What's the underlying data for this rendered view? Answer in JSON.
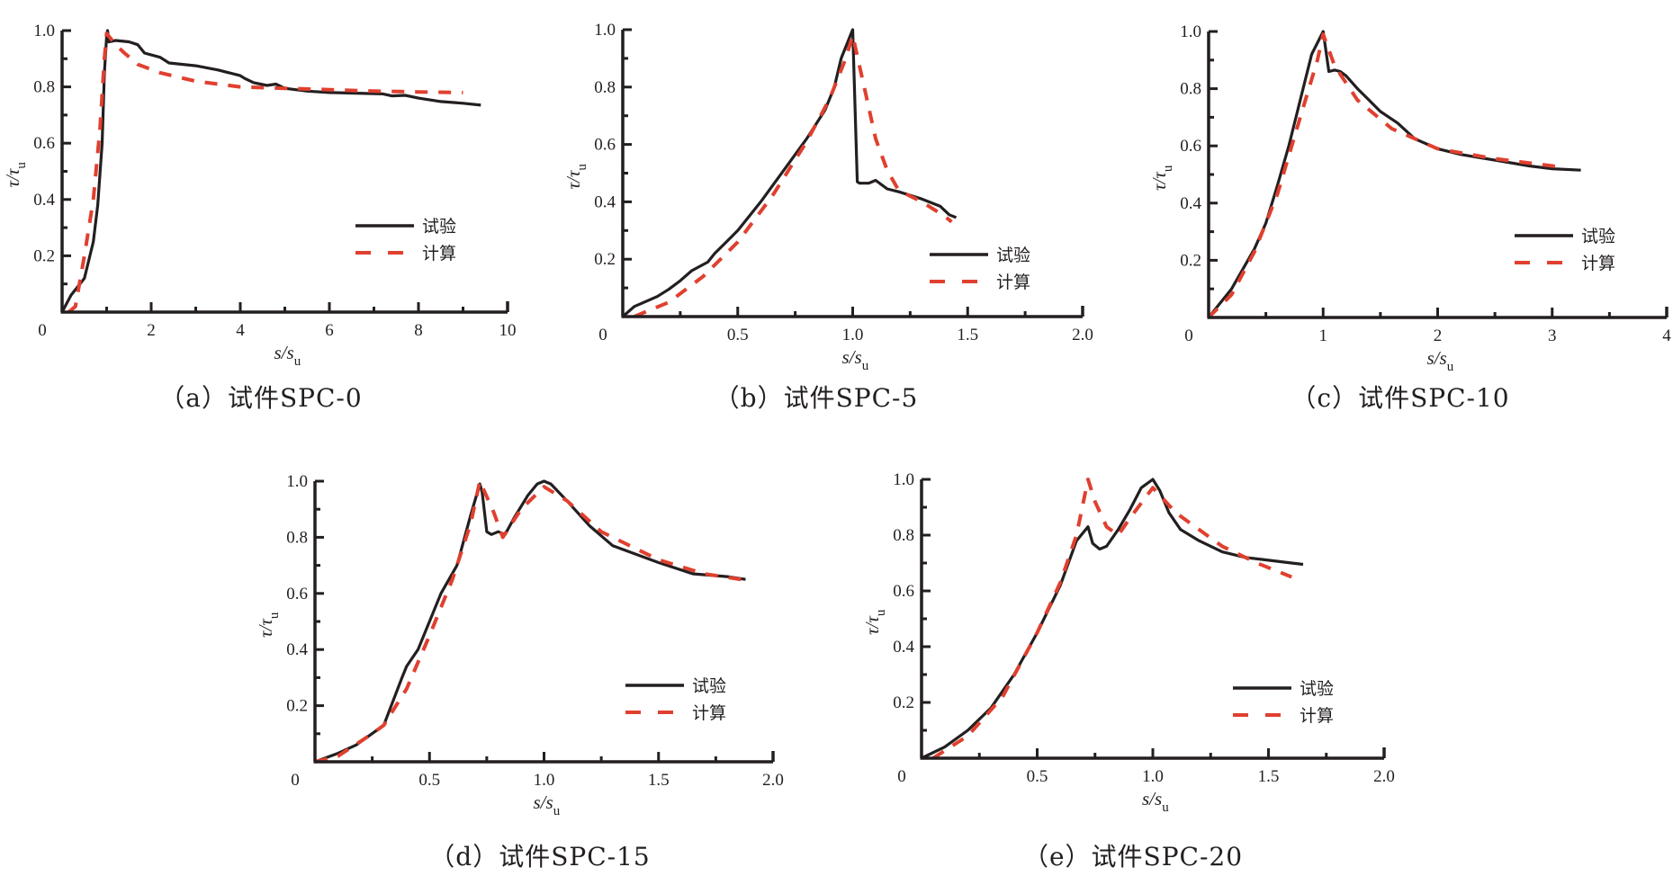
{
  "colors": {
    "test": "#231f20",
    "calc": "#e0402f",
    "axis": "#231f20"
  },
  "legend": {
    "test_label": "试验",
    "calc_label": "计算"
  },
  "chart_data": [
    {
      "id": "a",
      "type": "line",
      "caption": "（a）试件SPC-0",
      "xlabel": "s/s",
      "xlabel_sub": "u",
      "ylabel": "τ/τ",
      "ylabel_sub": "u",
      "xlim": [
        0,
        10
      ],
      "ylim": [
        0,
        1.0
      ],
      "xticks": [
        0,
        2,
        4,
        6,
        8,
        10
      ],
      "xtick_labels": [
        "0",
        "2",
        "4",
        "6",
        "8",
        "10"
      ],
      "xminor": [
        1,
        3,
        5,
        7,
        9
      ],
      "yticks": [
        0.2,
        0.4,
        0.6,
        0.8,
        1.0
      ],
      "ytick_labels": [
        "0.2",
        "0.4",
        "0.6",
        "0.8",
        "1.0"
      ],
      "yminor": [
        0.1,
        0.3,
        0.5,
        0.7,
        0.9
      ],
      "legend_position": "center-right",
      "series": [
        {
          "name": "试验",
          "style": "solid",
          "x": [
            0,
            0.2,
            0.5,
            0.7,
            0.8,
            0.9,
            0.95,
            1.0,
            1.02,
            1.05,
            1.2,
            1.5,
            1.7,
            1.85,
            2.2,
            2.4,
            3.0,
            3.5,
            4.0,
            4.1,
            4.3,
            4.6,
            4.8,
            5.0,
            5.5,
            6.0,
            6.5,
            7.0,
            7.2,
            7.4,
            7.7,
            8.0,
            8.5,
            9.0,
            9.4
          ],
          "y": [
            0,
            0.06,
            0.12,
            0.25,
            0.38,
            0.6,
            0.85,
            0.98,
            1.0,
            0.96,
            0.965,
            0.96,
            0.95,
            0.92,
            0.905,
            0.885,
            0.875,
            0.86,
            0.84,
            0.83,
            0.815,
            0.805,
            0.81,
            0.795,
            0.785,
            0.78,
            0.778,
            0.776,
            0.775,
            0.768,
            0.77,
            0.76,
            0.748,
            0.742,
            0.735
          ]
        },
        {
          "name": "计算",
          "style": "dashed",
          "x": [
            0.15,
            0.3,
            0.5,
            0.7,
            0.85,
            0.95,
            1.0,
            1.2,
            1.4,
            1.7,
            2.2,
            3.0,
            4.0,
            5.0,
            6.0,
            7.0,
            8.0,
            9.0
          ],
          "y": [
            0,
            0.02,
            0.2,
            0.4,
            0.65,
            0.9,
            0.99,
            0.95,
            0.92,
            0.88,
            0.85,
            0.82,
            0.8,
            0.795,
            0.79,
            0.785,
            0.782,
            0.78
          ]
        }
      ]
    },
    {
      "id": "b",
      "type": "line",
      "caption": "（b）试件SPC-5",
      "xlabel": "s/s",
      "xlabel_sub": "u",
      "ylabel": "τ/τ",
      "ylabel_sub": "u",
      "xlim": [
        0,
        2.0
      ],
      "ylim": [
        0,
        1.0
      ],
      "xticks": [
        0,
        0.5,
        1.0,
        1.5,
        2.0
      ],
      "xtick_labels": [
        "0",
        "0.5",
        "1.0",
        "1.5",
        "2.0"
      ],
      "xminor": [
        0.25,
        0.75,
        1.25,
        1.75
      ],
      "yticks": [
        0.2,
        0.4,
        0.6,
        0.8,
        1.0
      ],
      "ytick_labels": [
        "0.2",
        "0.4",
        "0.6",
        "0.8",
        "1.0"
      ],
      "yminor": [
        0.1,
        0.3,
        0.5,
        0.7,
        0.9
      ],
      "legend_position": "bottom-right",
      "series": [
        {
          "name": "试验",
          "style": "solid",
          "x": [
            0,
            0.05,
            0.15,
            0.2,
            0.25,
            0.3,
            0.37,
            0.4,
            0.45,
            0.5,
            0.6,
            0.7,
            0.8,
            0.88,
            0.92,
            0.95,
            1.0,
            1.02,
            1.03,
            1.07,
            1.1,
            1.15,
            1.2,
            1.3,
            1.38,
            1.42,
            1.45
          ],
          "y": [
            0,
            0.035,
            0.07,
            0.095,
            0.125,
            0.16,
            0.19,
            0.22,
            0.26,
            0.3,
            0.4,
            0.51,
            0.62,
            0.72,
            0.8,
            0.9,
            1.0,
            0.47,
            0.465,
            0.465,
            0.475,
            0.445,
            0.435,
            0.41,
            0.385,
            0.355,
            0.345
          ]
        },
        {
          "name": "计算",
          "style": "dashed",
          "x": [
            0.05,
            0.2,
            0.35,
            0.5,
            0.65,
            0.8,
            0.9,
            0.97,
            1.0,
            1.05,
            1.1,
            1.15,
            1.2,
            1.3,
            1.4,
            1.43
          ],
          "y": [
            0,
            0.05,
            0.14,
            0.26,
            0.42,
            0.61,
            0.76,
            0.9,
            0.98,
            0.8,
            0.62,
            0.51,
            0.44,
            0.4,
            0.35,
            0.33
          ]
        }
      ]
    },
    {
      "id": "c",
      "type": "line",
      "caption": "（c）试件SPC-10",
      "xlabel": "s/s",
      "xlabel_sub": "u",
      "ylabel": "τ/τ",
      "ylabel_sub": "u",
      "xlim": [
        0,
        4
      ],
      "ylim": [
        0,
        1.0
      ],
      "xticks": [
        0,
        1,
        2,
        3,
        4
      ],
      "xtick_labels": [
        "0",
        "1",
        "2",
        "3",
        "4"
      ],
      "xminor": [
        0.5,
        1.5,
        2.5,
        3.5
      ],
      "yticks": [
        0.2,
        0.4,
        0.6,
        0.8,
        1.0
      ],
      "ytick_labels": [
        "0.2",
        "0.4",
        "0.6",
        "0.8",
        "1.0"
      ],
      "yminor": [
        0.1,
        0.3,
        0.5,
        0.7,
        0.9
      ],
      "legend_position": "center-right",
      "series": [
        {
          "name": "试验",
          "style": "solid",
          "x": [
            0,
            0.1,
            0.2,
            0.3,
            0.4,
            0.5,
            0.6,
            0.7,
            0.8,
            0.9,
            1.0,
            1.05,
            1.1,
            1.15,
            1.2,
            1.3,
            1.4,
            1.5,
            1.65,
            1.8,
            2.0,
            2.2,
            2.5,
            2.8,
            3.0,
            3.25
          ],
          "y": [
            0,
            0.05,
            0.1,
            0.17,
            0.24,
            0.33,
            0.46,
            0.6,
            0.76,
            0.92,
            1.0,
            0.86,
            0.865,
            0.86,
            0.845,
            0.8,
            0.76,
            0.72,
            0.68,
            0.625,
            0.59,
            0.57,
            0.55,
            0.53,
            0.52,
            0.515
          ]
        },
        {
          "name": "计算",
          "style": "dashed",
          "x": [
            0,
            0.2,
            0.4,
            0.6,
            0.8,
            0.95,
            1.0,
            1.1,
            1.3,
            1.6,
            2.0,
            2.5,
            3.0,
            3.1
          ],
          "y": [
            0,
            0.08,
            0.23,
            0.43,
            0.7,
            0.9,
            0.99,
            0.88,
            0.76,
            0.66,
            0.59,
            0.555,
            0.53,
            0.525
          ]
        }
      ]
    },
    {
      "id": "d",
      "type": "line",
      "caption": "（d）试件SPC-15",
      "xlabel": "s/s",
      "xlabel_sub": "u",
      "ylabel": "τ/τ",
      "ylabel_sub": "u",
      "xlim": [
        0,
        2.0
      ],
      "ylim": [
        0,
        1.0
      ],
      "xticks": [
        0,
        0.5,
        1.0,
        1.5,
        2.0
      ],
      "xtick_labels": [
        "0",
        "0.5",
        "1.0",
        "1.5",
        "2.0"
      ],
      "xminor": [
        0.25,
        0.75,
        1.25,
        1.75
      ],
      "yticks": [
        0.2,
        0.4,
        0.6,
        0.8,
        1.0
      ],
      "ytick_labels": [
        "0.2",
        "0.4",
        "0.6",
        "0.8",
        "1.0"
      ],
      "yminor": [
        0.1,
        0.3,
        0.5,
        0.7,
        0.9
      ],
      "legend_position": "center-right",
      "series": [
        {
          "name": "试验",
          "style": "solid",
          "x": [
            0,
            0.1,
            0.18,
            0.3,
            0.38,
            0.4,
            0.45,
            0.55,
            0.62,
            0.68,
            0.72,
            0.73,
            0.75,
            0.77,
            0.8,
            0.83,
            0.87,
            0.93,
            0.97,
            1.0,
            1.03,
            1.1,
            1.2,
            1.3,
            1.4,
            1.5,
            1.65,
            1.8,
            1.88
          ],
          "y": [
            0,
            0.03,
            0.06,
            0.13,
            0.3,
            0.34,
            0.4,
            0.6,
            0.7,
            0.88,
            0.99,
            0.96,
            0.82,
            0.81,
            0.82,
            0.81,
            0.87,
            0.95,
            0.99,
            1.0,
            0.99,
            0.93,
            0.84,
            0.77,
            0.74,
            0.71,
            0.67,
            0.66,
            0.65
          ]
        },
        {
          "name": "计算",
          "style": "dashed",
          "x": [
            0,
            0.1,
            0.25,
            0.3,
            0.4,
            0.5,
            0.6,
            0.68,
            0.72,
            0.78,
            0.82,
            0.9,
            1.0,
            1.1,
            1.25,
            1.5,
            1.7,
            1.9
          ],
          "y": [
            0,
            0.02,
            0.1,
            0.13,
            0.26,
            0.45,
            0.65,
            0.85,
            1.0,
            0.89,
            0.8,
            0.9,
            0.98,
            0.93,
            0.82,
            0.72,
            0.67,
            0.645
          ]
        }
      ]
    },
    {
      "id": "e",
      "type": "line",
      "caption": "（e）试件SPC-20",
      "xlabel": "s/s",
      "xlabel_sub": "u",
      "ylabel": "τ/τ",
      "ylabel_sub": "u",
      "xlim": [
        0,
        2.0
      ],
      "ylim": [
        0,
        1.0
      ],
      "xticks": [
        0,
        0.5,
        1.0,
        1.5,
        2.0
      ],
      "xtick_labels": [
        "0",
        "0.5",
        "1.0",
        "1.5",
        "2.0"
      ],
      "xminor": [
        0.25,
        0.75,
        1.25,
        1.75
      ],
      "yticks": [
        0.2,
        0.4,
        0.6,
        0.8,
        1.0
      ],
      "ytick_labels": [
        "0.2",
        "0.4",
        "0.6",
        "0.8",
        "1.0"
      ],
      "yminor": [
        0.1,
        0.3,
        0.5,
        0.7,
        0.9
      ],
      "legend_position": "center-right",
      "series": [
        {
          "name": "试验",
          "style": "solid",
          "x": [
            0,
            0.1,
            0.2,
            0.3,
            0.4,
            0.5,
            0.6,
            0.67,
            0.7,
            0.72,
            0.74,
            0.77,
            0.8,
            0.85,
            0.9,
            0.95,
            1.0,
            1.03,
            1.07,
            1.12,
            1.2,
            1.3,
            1.4,
            1.5,
            1.6,
            1.65
          ],
          "y": [
            0,
            0.04,
            0.1,
            0.18,
            0.3,
            0.45,
            0.62,
            0.78,
            0.81,
            0.83,
            0.77,
            0.75,
            0.76,
            0.82,
            0.89,
            0.97,
            1.0,
            0.96,
            0.88,
            0.82,
            0.78,
            0.74,
            0.72,
            0.71,
            0.7,
            0.695
          ]
        },
        {
          "name": "计算",
          "style": "dashed",
          "x": [
            0.05,
            0.2,
            0.35,
            0.5,
            0.6,
            0.67,
            0.72,
            0.75,
            0.8,
            0.85,
            0.9,
            1.0,
            1.1,
            1.3,
            1.45,
            1.6
          ],
          "y": [
            0,
            0.08,
            0.22,
            0.45,
            0.63,
            0.8,
            1.0,
            0.92,
            0.83,
            0.8,
            0.86,
            0.97,
            0.88,
            0.76,
            0.7,
            0.65
          ]
        }
      ]
    }
  ]
}
